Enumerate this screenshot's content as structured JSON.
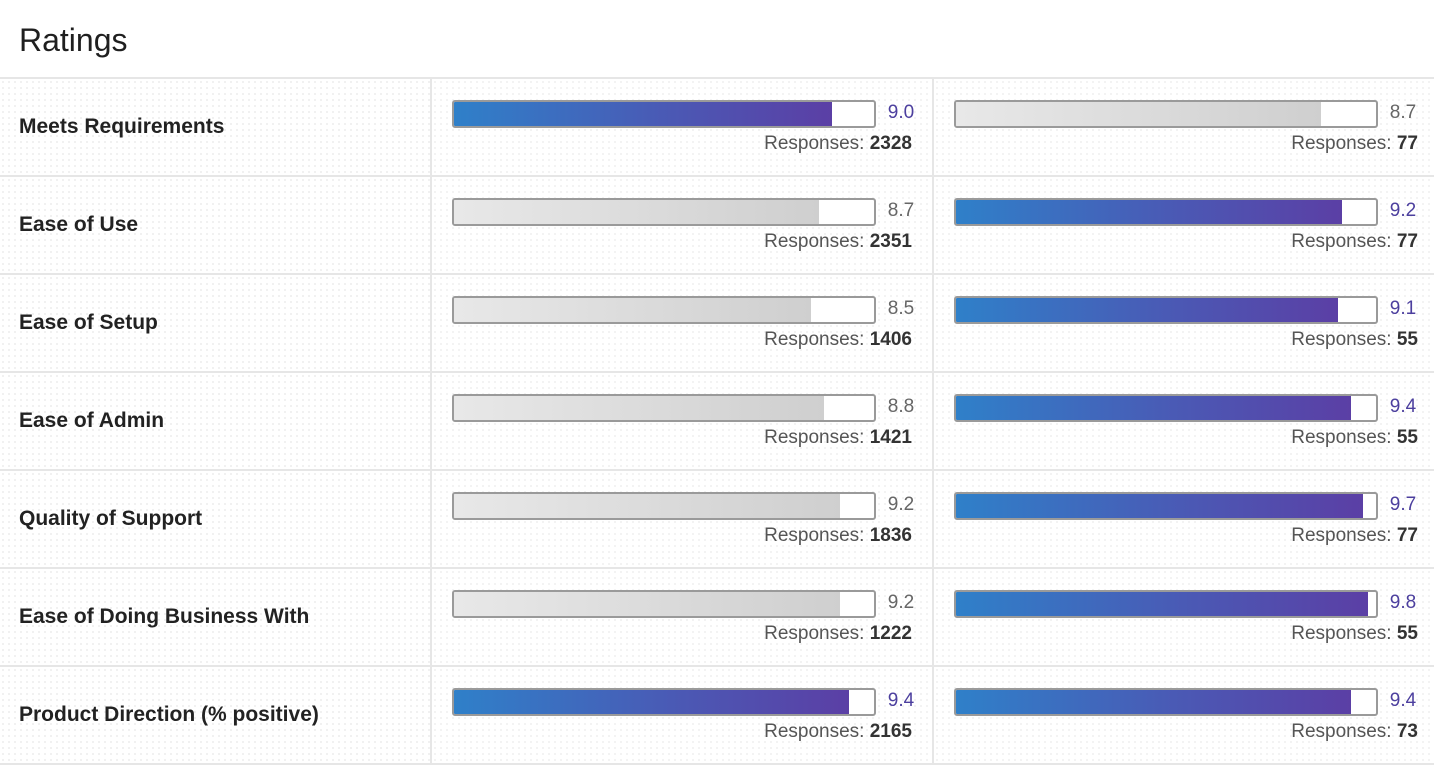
{
  "title": "Ratings",
  "responses_label": "Responses:",
  "colors": {
    "highlight_start": "#2f80c9",
    "highlight_end": "#5b3fa5",
    "muted": "#cfcfcf",
    "score_highlight": "#4c3f9e"
  },
  "rows": [
    {
      "label": "Meets Requirements",
      "a": {
        "score": "9.0",
        "value": 9.0,
        "responses": "2328",
        "highlighted": true
      },
      "b": {
        "score": "8.7",
        "value": 8.7,
        "responses": "77",
        "highlighted": false
      }
    },
    {
      "label": "Ease of Use",
      "a": {
        "score": "8.7",
        "value": 8.7,
        "responses": "2351",
        "highlighted": false
      },
      "b": {
        "score": "9.2",
        "value": 9.2,
        "responses": "77",
        "highlighted": true
      }
    },
    {
      "label": "Ease of Setup",
      "a": {
        "score": "8.5",
        "value": 8.5,
        "responses": "1406",
        "highlighted": false
      },
      "b": {
        "score": "9.1",
        "value": 9.1,
        "responses": "55",
        "highlighted": true
      }
    },
    {
      "label": "Ease of Admin",
      "a": {
        "score": "8.8",
        "value": 8.8,
        "responses": "1421",
        "highlighted": false
      },
      "b": {
        "score": "9.4",
        "value": 9.4,
        "responses": "55",
        "highlighted": true
      }
    },
    {
      "label": "Quality of Support",
      "a": {
        "score": "9.2",
        "value": 9.2,
        "responses": "1836",
        "highlighted": false
      },
      "b": {
        "score": "9.7",
        "value": 9.7,
        "responses": "77",
        "highlighted": true
      }
    },
    {
      "label": "Ease of Doing Business With",
      "a": {
        "score": "9.2",
        "value": 9.2,
        "responses": "1222",
        "highlighted": false
      },
      "b": {
        "score": "9.8",
        "value": 9.8,
        "responses": "55",
        "highlighted": true
      }
    },
    {
      "label": "Product Direction (% positive)",
      "a": {
        "score": "9.4",
        "value": 9.4,
        "responses": "2165",
        "highlighted": true
      },
      "b": {
        "score": "9.4",
        "value": 9.4,
        "responses": "73",
        "highlighted": true
      }
    }
  ]
}
